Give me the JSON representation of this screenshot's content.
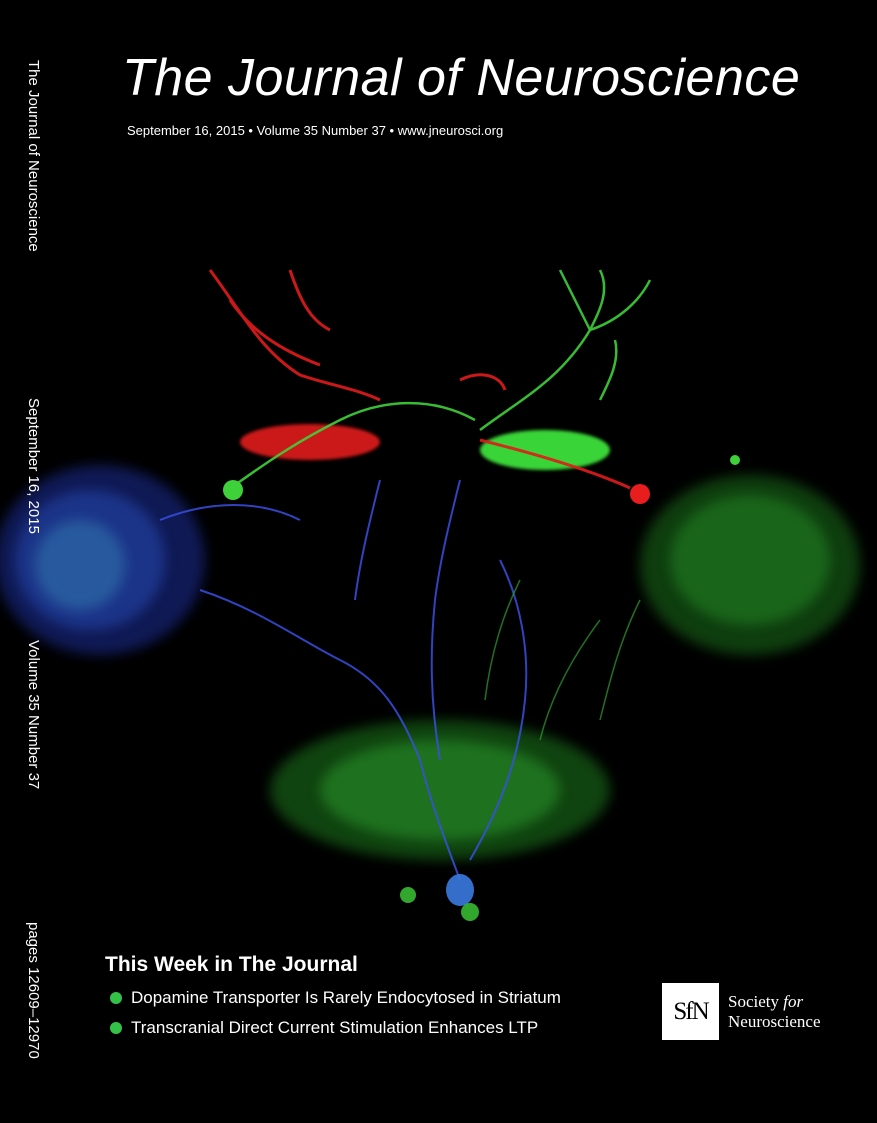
{
  "cover": {
    "title": "The Journal of Neuroscience",
    "subtitle": "September 16, 2015 • Volume 35 Number 37 • www.jneurosci.org",
    "spine": {
      "journal": "The Journal of Neuroscience",
      "date": "September 16, 2015",
      "volume": "Volume 35 Number 37",
      "pages": "pages 12609–12970"
    },
    "this_week": {
      "heading": "This Week in The Journal",
      "items": [
        "Dopamine Transporter Is Rarely Endocytosed in Striatum",
        "Transcranial Direct Current Stimulation Enhances LTP"
      ]
    },
    "publisher": {
      "logo": "SfN",
      "line1_a": "Society",
      "line1_b": "for",
      "line2": "Neuroscience"
    }
  },
  "colors": {
    "background": "#000000",
    "neuron_green": "#3fd13a",
    "neuron_blue": "#3a4fe0",
    "neuron_red": "#e81d1d",
    "bullet": "#33c247"
  }
}
